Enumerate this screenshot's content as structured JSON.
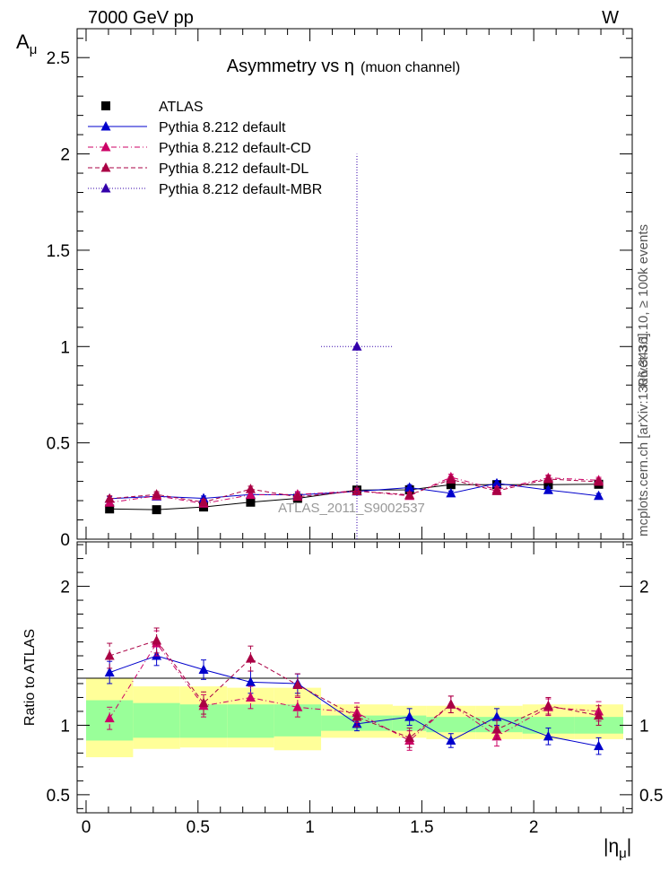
{
  "header": {
    "left": "7000 GeV pp",
    "right": "W"
  },
  "side_texts": {
    "rivet": "Rivet 3.1.10, ≥ 100k events",
    "mcplots": "mcplots.cern.ch [arXiv:1306.3436]"
  },
  "chart_data": [
    {
      "type": "line",
      "title_main": "Asymmetry vs  η",
      "title_sub": "(muon channel)",
      "ylabel_main": "A",
      "ylabel_sub": "μ",
      "watermark": "ATLAS_2011_S9002537",
      "xlim": [
        -0.04,
        2.44
      ],
      "ylim": [
        0,
        2.65
      ],
      "yticks": [
        "0",
        "0.5",
        "1",
        "1.5",
        "2",
        "2.5"
      ],
      "ytick_values": [
        0,
        0.5,
        1,
        1.5,
        2,
        2.5
      ],
      "xticks": [
        "0",
        "0.5",
        "1",
        "1.5",
        "2"
      ],
      "xtick_values": [
        0,
        0.5,
        1,
        1.5,
        2
      ],
      "legend_position": "top-left",
      "x": [
        0.105,
        0.315,
        0.525,
        0.735,
        0.945,
        1.21,
        1.445,
        1.63,
        1.835,
        2.065,
        2.29
      ],
      "x_bins": [
        [
          0,
          0.21
        ],
        [
          0.21,
          0.42
        ],
        [
          0.42,
          0.63
        ],
        [
          0.63,
          0.84
        ],
        [
          0.84,
          1.05
        ],
        [
          1.05,
          1.37
        ],
        [
          1.37,
          1.52
        ],
        [
          1.52,
          1.74
        ],
        [
          1.74,
          1.95
        ],
        [
          1.95,
          2.18
        ],
        [
          2.18,
          2.4
        ]
      ],
      "series": [
        {
          "name": "ATLAS",
          "color": "#000000",
          "style": "marker",
          "values": [
            0.157,
            0.153,
            0.167,
            0.192,
            0.212,
            0.255,
            0.256,
            0.283,
            0.283,
            0.283,
            0.285
          ],
          "errors": [
            0.012,
            0.011,
            0.011,
            0.012,
            0.012,
            0.012,
            0.013,
            0.014,
            0.014,
            0.016,
            0.016
          ]
        },
        {
          "name": "Pythia 8.212 default",
          "color": "#0000cc",
          "style": "solid",
          "values": [
            0.21,
            0.222,
            0.212,
            0.232,
            0.23,
            0.248,
            0.268,
            0.238,
            0.29,
            0.255,
            0.225
          ],
          "errors": [
            0.012,
            0.012,
            0.012,
            0.012,
            0.012,
            0.012,
            0.015,
            0.012,
            0.015,
            0.015,
            0.012
          ]
        },
        {
          "name": "Pythia 8.212 default-CD",
          "color": "#cc0066",
          "style": "dashdot",
          "values": [
            0.19,
            0.225,
            0.185,
            0.23,
            0.232,
            0.25,
            0.225,
            0.322,
            0.258,
            0.318,
            0.306
          ],
          "errors": [
            0.015,
            0.015,
            0.015,
            0.015,
            0.015,
            0.015,
            0.015,
            0.015,
            0.015,
            0.015,
            0.015
          ]
        },
        {
          "name": "Pythia 8.212 default-DL",
          "color": "#aa0044",
          "style": "dashed",
          "values": [
            0.21,
            0.232,
            0.192,
            0.26,
            0.22,
            0.25,
            0.23,
            0.31,
            0.25,
            0.312,
            0.298
          ],
          "errors": [
            0.015,
            0.015,
            0.015,
            0.015,
            0.015,
            0.015,
            0.015,
            0.015,
            0.015,
            0.015,
            0.015
          ]
        },
        {
          "name": "Pythia 8.212 default-MBR",
          "color": "#3300aa",
          "style": "dotted",
          "values": [
            null,
            null,
            null,
            null,
            null,
            1.0,
            null,
            null,
            null,
            null,
            null
          ],
          "errors": [
            null,
            null,
            null,
            null,
            null,
            1.0,
            null,
            null,
            null,
            null,
            null
          ]
        }
      ]
    },
    {
      "type": "line",
      "ylabel": "Ratio to ATLAS",
      "xlabel_main": "|η",
      "xlabel_sub": "μ",
      "xlim": [
        -0.04,
        2.44
      ],
      "ylim": [
        0.37,
        2.32
      ],
      "yticks": [
        "0.5",
        "1",
        "2"
      ],
      "ytick_values": [
        0.5,
        1,
        2
      ],
      "xticks": [
        "0",
        "0.5",
        "1",
        "1.5",
        "2"
      ],
      "xtick_values": [
        0,
        0.5,
        1,
        1.5,
        2
      ],
      "band_green": [
        [
          0.89,
          1.18
        ],
        [
          0.91,
          1.16
        ],
        [
          0.91,
          1.15
        ],
        [
          0.91,
          1.15
        ],
        [
          0.92,
          1.15
        ],
        [
          0.96,
          1.07
        ],
        [
          0.96,
          1.07
        ],
        [
          0.95,
          1.06
        ],
        [
          0.95,
          1.06
        ],
        [
          0.94,
          1.06
        ],
        [
          0.94,
          1.06
        ]
      ],
      "band_yellow": [
        [
          0.77,
          1.34
        ],
        [
          0.83,
          1.28
        ],
        [
          0.84,
          1.28
        ],
        [
          0.84,
          1.27
        ],
        [
          0.82,
          1.27
        ],
        [
          0.91,
          1.15
        ],
        [
          0.91,
          1.14
        ],
        [
          0.9,
          1.14
        ],
        [
          0.9,
          1.14
        ],
        [
          0.9,
          1.15
        ],
        [
          0.9,
          1.15
        ]
      ],
      "series": [
        {
          "name": "Pythia 8.212 default",
          "color": "#0000cc",
          "style": "solid",
          "values": [
            1.38,
            1.5,
            1.4,
            1.31,
            1.3,
            1.01,
            1.06,
            0.89,
            1.06,
            0.92,
            0.85
          ],
          "errors": [
            0.08,
            0.07,
            0.07,
            0.08,
            0.07,
            0.05,
            0.06,
            0.05,
            0.06,
            0.06,
            0.06
          ]
        },
        {
          "name": "Pythia 8.212 default-CD",
          "color": "#cc0066",
          "style": "dashdot",
          "values": [
            1.05,
            1.59,
            1.14,
            1.2,
            1.13,
            1.09,
            0.89,
            1.15,
            0.92,
            1.13,
            1.1
          ],
          "errors": [
            0.08,
            0.09,
            0.08,
            0.08,
            0.07,
            0.07,
            0.07,
            0.06,
            0.07,
            0.06,
            0.07
          ]
        },
        {
          "name": "Pythia 8.212 default-DL",
          "color": "#aa0044",
          "style": "dashed",
          "values": [
            1.5,
            1.61,
            1.16,
            1.48,
            1.29,
            1.06,
            0.91,
            1.15,
            0.97,
            1.14,
            1.07
          ],
          "errors": [
            0.09,
            0.09,
            0.08,
            0.09,
            0.08,
            0.07,
            0.07,
            0.06,
            0.07,
            0.06,
            0.07
          ]
        }
      ]
    }
  ]
}
